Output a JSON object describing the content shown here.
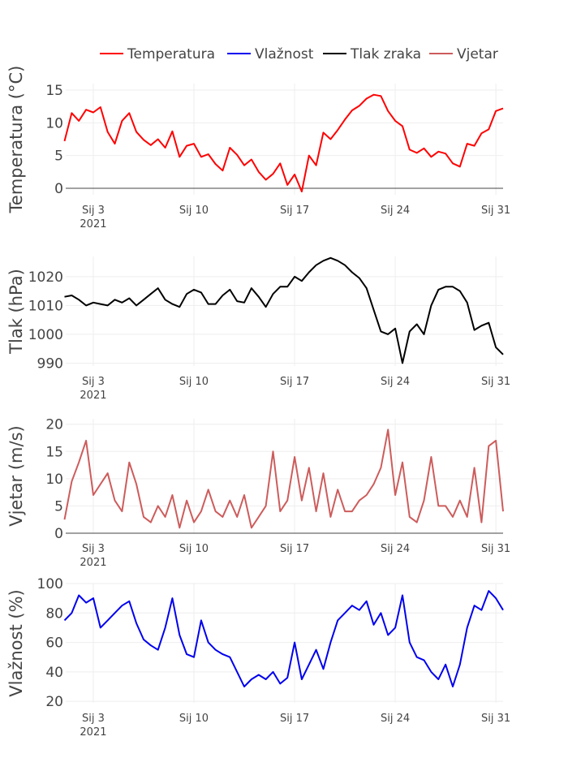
{
  "colors": {
    "temperatura": "#ff0000",
    "vlaznost": "#0000ee",
    "tlak": "#000000",
    "vjetar": "#cd5c5c"
  },
  "chart_data": [
    {
      "type": "line",
      "ylabel": "Temperatura (°C)",
      "ylim": [
        -1,
        16
      ],
      "yticks": [
        0,
        5,
        10,
        15
      ],
      "series": [
        {
          "name": "Temperatura",
          "color": "#ff0000",
          "x": [
            "2021-01-01",
            "2021-01-01 12:00",
            "2021-01-02",
            "2021-01-02 12:00",
            "2021-01-03",
            "2021-01-03 12:00",
            "2021-01-04",
            "2021-01-04 12:00",
            "2021-01-05",
            "2021-01-05 12:00",
            "2021-01-06",
            "2021-01-06 12:00",
            "2021-01-07",
            "2021-01-07 12:00",
            "2021-01-08",
            "2021-01-08 12:00",
            "2021-01-09",
            "2021-01-09 12:00",
            "2021-01-10",
            "2021-01-10 12:00",
            "2021-01-11",
            "2021-01-11 12:00",
            "2021-01-12",
            "2021-01-12 12:00",
            "2021-01-13",
            "2021-01-13 12:00",
            "2021-01-14",
            "2021-01-14 12:00",
            "2021-01-15",
            "2021-01-15 12:00",
            "2021-01-16",
            "2021-01-16 12:00",
            "2021-01-17",
            "2021-01-17 12:00",
            "2021-01-18",
            "2021-01-18 12:00",
            "2021-01-19",
            "2021-01-19 12:00",
            "2021-01-20",
            "2021-01-20 12:00",
            "2021-01-21",
            "2021-01-21 12:00",
            "2021-01-22",
            "2021-01-22 12:00",
            "2021-01-23",
            "2021-01-23 12:00",
            "2021-01-24",
            "2021-01-24 12:00",
            "2021-01-25",
            "2021-01-25 12:00",
            "2021-01-26",
            "2021-01-26 12:00",
            "2021-01-27",
            "2021-01-27 12:00",
            "2021-01-28",
            "2021-01-28 12:00",
            "2021-01-29",
            "2021-01-29 12:00",
            "2021-01-30",
            "2021-01-30 12:00",
            "2021-01-31",
            "2021-01-31 12:00"
          ],
          "y": [
            7.2,
            11.5,
            10.3,
            12.0,
            11.6,
            12.4,
            8.6,
            6.8,
            10.3,
            11.5,
            8.6,
            7.4,
            6.6,
            7.5,
            6.2,
            8.7,
            4.8,
            6.5,
            6.8,
            4.8,
            5.2,
            3.7,
            2.7,
            6.2,
            5.1,
            3.5,
            4.4,
            2.5,
            1.3,
            2.2,
            3.8,
            0.5,
            2.1,
            -0.5,
            5.0,
            3.5,
            8.5,
            7.5,
            8.9,
            10.5,
            11.9,
            12.6,
            13.7,
            14.3,
            14.1,
            11.8,
            10.3,
            9.5,
            5.9,
            5.4,
            6.1,
            4.8,
            5.6,
            5.3,
            3.8,
            3.3,
            6.8,
            6.5,
            8.4,
            9.0,
            11.8,
            12.2
          ]
        }
      ]
    },
    {
      "type": "line",
      "ylabel": "Tlak (hPa)",
      "ylim": [
        989,
        1027
      ],
      "yticks": [
        990,
        1000,
        1010,
        1020
      ],
      "series": [
        {
          "name": "Tlak zraka",
          "color": "#000000",
          "x": [
            "2021-01-01",
            "2021-01-01 12:00",
            "2021-01-02",
            "2021-01-02 12:00",
            "2021-01-03",
            "2021-01-03 12:00",
            "2021-01-04",
            "2021-01-04 12:00",
            "2021-01-05",
            "2021-01-05 12:00",
            "2021-01-06",
            "2021-01-06 12:00",
            "2021-01-07",
            "2021-01-07 12:00",
            "2021-01-08",
            "2021-01-08 12:00",
            "2021-01-09",
            "2021-01-09 12:00",
            "2021-01-10",
            "2021-01-10 12:00",
            "2021-01-11",
            "2021-01-11 12:00",
            "2021-01-12",
            "2021-01-12 12:00",
            "2021-01-13",
            "2021-01-13 12:00",
            "2021-01-14",
            "2021-01-14 12:00",
            "2021-01-15",
            "2021-01-15 12:00",
            "2021-01-16",
            "2021-01-16 12:00",
            "2021-01-17",
            "2021-01-17 12:00",
            "2021-01-18",
            "2021-01-18 12:00",
            "2021-01-19",
            "2021-01-19 12:00",
            "2021-01-20",
            "2021-01-20 12:00",
            "2021-01-21",
            "2021-01-21 12:00",
            "2021-01-22",
            "2021-01-22 12:00",
            "2021-01-23",
            "2021-01-23 12:00",
            "2021-01-24",
            "2021-01-24 12:00",
            "2021-01-25",
            "2021-01-25 12:00",
            "2021-01-26",
            "2021-01-26 12:00",
            "2021-01-27",
            "2021-01-27 12:00",
            "2021-01-28",
            "2021-01-28 12:00",
            "2021-01-29",
            "2021-01-29 12:00",
            "2021-01-30",
            "2021-01-30 12:00",
            "2021-01-31",
            "2021-01-31 12:00"
          ],
          "y": [
            1013,
            1013.5,
            1012,
            1010,
            1011,
            1010.5,
            1010,
            1012,
            1011,
            1012.5,
            1010,
            1012,
            1014,
            1016,
            1012,
            1010.5,
            1009.5,
            1014,
            1015.5,
            1014.5,
            1010.5,
            1010.5,
            1013.5,
            1015.5,
            1011.5,
            1011,
            1016,
            1013,
            1009.5,
            1014,
            1016.5,
            1016.5,
            1020,
            1018.5,
            1021.5,
            1024,
            1025.5,
            1026.5,
            1025.5,
            1024,
            1021.5,
            1019.5,
            1016,
            1008.5,
            1001,
            1000,
            1002,
            990,
            1001,
            1003.5,
            1000,
            1010,
            1015.5,
            1016.5,
            1016.5,
            1015,
            1011,
            1001.5,
            1003,
            1004,
            995.5,
            993
          ]
        }
      ]
    },
    {
      "type": "line",
      "ylabel": "Vjetar (m/s)",
      "ylim": [
        0,
        21
      ],
      "yticks": [
        0,
        5,
        10,
        15,
        20
      ],
      "series": [
        {
          "name": "Vjetar",
          "color": "#cd5c5c",
          "x": [
            "2021-01-01",
            "2021-01-01 12:00",
            "2021-01-02",
            "2021-01-02 12:00",
            "2021-01-03",
            "2021-01-03 12:00",
            "2021-01-04",
            "2021-01-04 12:00",
            "2021-01-05",
            "2021-01-05 12:00",
            "2021-01-06",
            "2021-01-06 12:00",
            "2021-01-07",
            "2021-01-07 12:00",
            "2021-01-08",
            "2021-01-08 12:00",
            "2021-01-09",
            "2021-01-09 12:00",
            "2021-01-10",
            "2021-01-10 12:00",
            "2021-01-11",
            "2021-01-11 12:00",
            "2021-01-12",
            "2021-01-12 12:00",
            "2021-01-13",
            "2021-01-13 12:00",
            "2021-01-14",
            "2021-01-14 12:00",
            "2021-01-15",
            "2021-01-15 12:00",
            "2021-01-16",
            "2021-01-16 12:00",
            "2021-01-17",
            "2021-01-17 12:00",
            "2021-01-18",
            "2021-01-18 12:00",
            "2021-01-19",
            "2021-01-19 12:00",
            "2021-01-20",
            "2021-01-20 12:00",
            "2021-01-21",
            "2021-01-21 12:00",
            "2021-01-22",
            "2021-01-22 12:00",
            "2021-01-23",
            "2021-01-23 12:00",
            "2021-01-24",
            "2021-01-24 12:00",
            "2021-01-25",
            "2021-01-25 12:00",
            "2021-01-26",
            "2021-01-26 12:00",
            "2021-01-27",
            "2021-01-27 12:00",
            "2021-01-28",
            "2021-01-28 12:00",
            "2021-01-29",
            "2021-01-29 12:00",
            "2021-01-30",
            "2021-01-30 12:00",
            "2021-01-31",
            "2021-01-31 12:00"
          ],
          "y": [
            2.5,
            9.5,
            13,
            17,
            7,
            9,
            11,
            6,
            4,
            13,
            9,
            3,
            2,
            5,
            3,
            7,
            1,
            6,
            2,
            4,
            8,
            4,
            3,
            6,
            3,
            7,
            1,
            3,
            5,
            15,
            4,
            6,
            14,
            6,
            12,
            4,
            11,
            3,
            8,
            4,
            4,
            6,
            7,
            9,
            12,
            19,
            7,
            13,
            3,
            2,
            6,
            14,
            5,
            5,
            3,
            6,
            3,
            12,
            2,
            16,
            17,
            4
          ]
        }
      ]
    },
    {
      "type": "line",
      "ylabel": "Vlažnost (%)",
      "ylim": [
        19,
        100
      ],
      "yticks": [
        20,
        40,
        60,
        80,
        100
      ],
      "series": [
        {
          "name": "Vlažnost",
          "color": "#0000ee",
          "x": [
            "2021-01-01",
            "2021-01-01 12:00",
            "2021-01-02",
            "2021-01-02 12:00",
            "2021-01-03",
            "2021-01-03 12:00",
            "2021-01-04",
            "2021-01-04 12:00",
            "2021-01-05",
            "2021-01-05 12:00",
            "2021-01-06",
            "2021-01-06 12:00",
            "2021-01-07",
            "2021-01-07 12:00",
            "2021-01-08",
            "2021-01-08 12:00",
            "2021-01-09",
            "2021-01-09 12:00",
            "2021-01-10",
            "2021-01-10 12:00",
            "2021-01-11",
            "2021-01-11 12:00",
            "2021-01-12",
            "2021-01-12 12:00",
            "2021-01-13",
            "2021-01-13 12:00",
            "2021-01-14",
            "2021-01-14 12:00",
            "2021-01-15",
            "2021-01-15 12:00",
            "2021-01-16",
            "2021-01-16 12:00",
            "2021-01-17",
            "2021-01-17 12:00",
            "2021-01-18",
            "2021-01-18 12:00",
            "2021-01-19",
            "2021-01-19 12:00",
            "2021-01-20",
            "2021-01-20 12:00",
            "2021-01-21",
            "2021-01-21 12:00",
            "2021-01-22",
            "2021-01-22 12:00",
            "2021-01-23",
            "2021-01-23 12:00",
            "2021-01-24",
            "2021-01-24 12:00",
            "2021-01-25",
            "2021-01-25 12:00",
            "2021-01-26",
            "2021-01-26 12:00",
            "2021-01-27",
            "2021-01-27 12:00",
            "2021-01-28",
            "2021-01-28 12:00",
            "2021-01-29",
            "2021-01-29 12:00",
            "2021-01-30",
            "2021-01-30 12:00",
            "2021-01-31",
            "2021-01-31 12:00"
          ],
          "y": [
            75,
            80,
            92,
            87,
            90,
            70,
            75,
            80,
            85,
            88,
            73,
            62,
            58,
            55,
            70,
            90,
            65,
            52,
            50,
            75,
            60,
            55,
            52,
            50,
            40,
            30,
            35,
            38,
            35,
            40,
            32,
            36,
            60,
            35,
            45,
            55,
            42,
            60,
            75,
            80,
            85,
            82,
            88,
            72,
            80,
            65,
            70,
            92,
            60,
            50,
            48,
            40,
            35,
            45,
            30,
            45,
            70,
            85,
            82,
            95,
            90,
            82
          ]
        }
      ]
    }
  ],
  "xaxis": {
    "ticks": [
      {
        "date": "2021-01-03",
        "label": "Siј 3",
        "sub": "2021"
      },
      {
        "date": "2021-01-10",
        "label": "Siј 10",
        "sub": ""
      },
      {
        "date": "2021-01-17",
        "label": "Siј 17",
        "sub": ""
      },
      {
        "date": "2021-01-24",
        "label": "Siј 24",
        "sub": ""
      },
      {
        "date": "2021-01-31",
        "label": "Siј 31",
        "sub": ""
      }
    ],
    "range": [
      "2021-01-01 02:00",
      "2021-01-31 12:00"
    ]
  },
  "legend": {
    "placement": "top-right",
    "items": [
      {
        "label": "Temperatura",
        "color": "#ff0000"
      },
      {
        "label": "Vlažnost",
        "color": "#0000ee"
      },
      {
        "label": "Tlak zraka",
        "color": "#000000"
      },
      {
        "label": "Vjetar",
        "color": "#cd5c5c"
      }
    ]
  }
}
